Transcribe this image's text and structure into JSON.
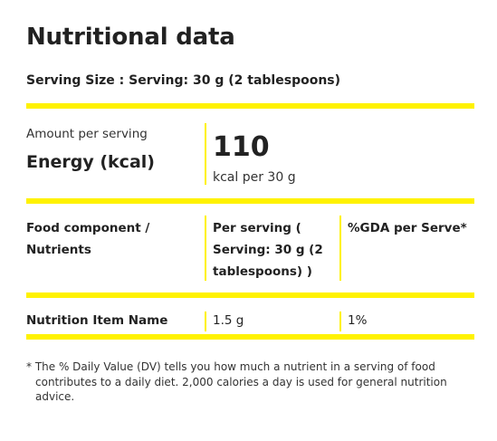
{
  "title": "Nutritional data",
  "serving_size": "Serving Size : Serving: 30 g (2 tablespoons)",
  "energy": {
    "amount_label": "Amount per serving",
    "label": "Energy (kcal)",
    "value": "110",
    "unit": "kcal per 30 g"
  },
  "table": {
    "headers": [
      "Food component / Nutrients",
      "Per serving ( Serving: 30 g (2 tablespoons) )",
      "%GDA per Serve*"
    ],
    "rows": [
      {
        "name": "Nutrition Item Name",
        "per_serving": "1.5 g",
        "gda": "1%"
      }
    ]
  },
  "footnote": "* The % Daily Value (DV) tells you how much a nutrient in a serving of food contributes to a daily diet. 2,000 calories a day is used for general nutrition advice.",
  "colors": {
    "accent": "#fff200",
    "text": "#222222"
  }
}
